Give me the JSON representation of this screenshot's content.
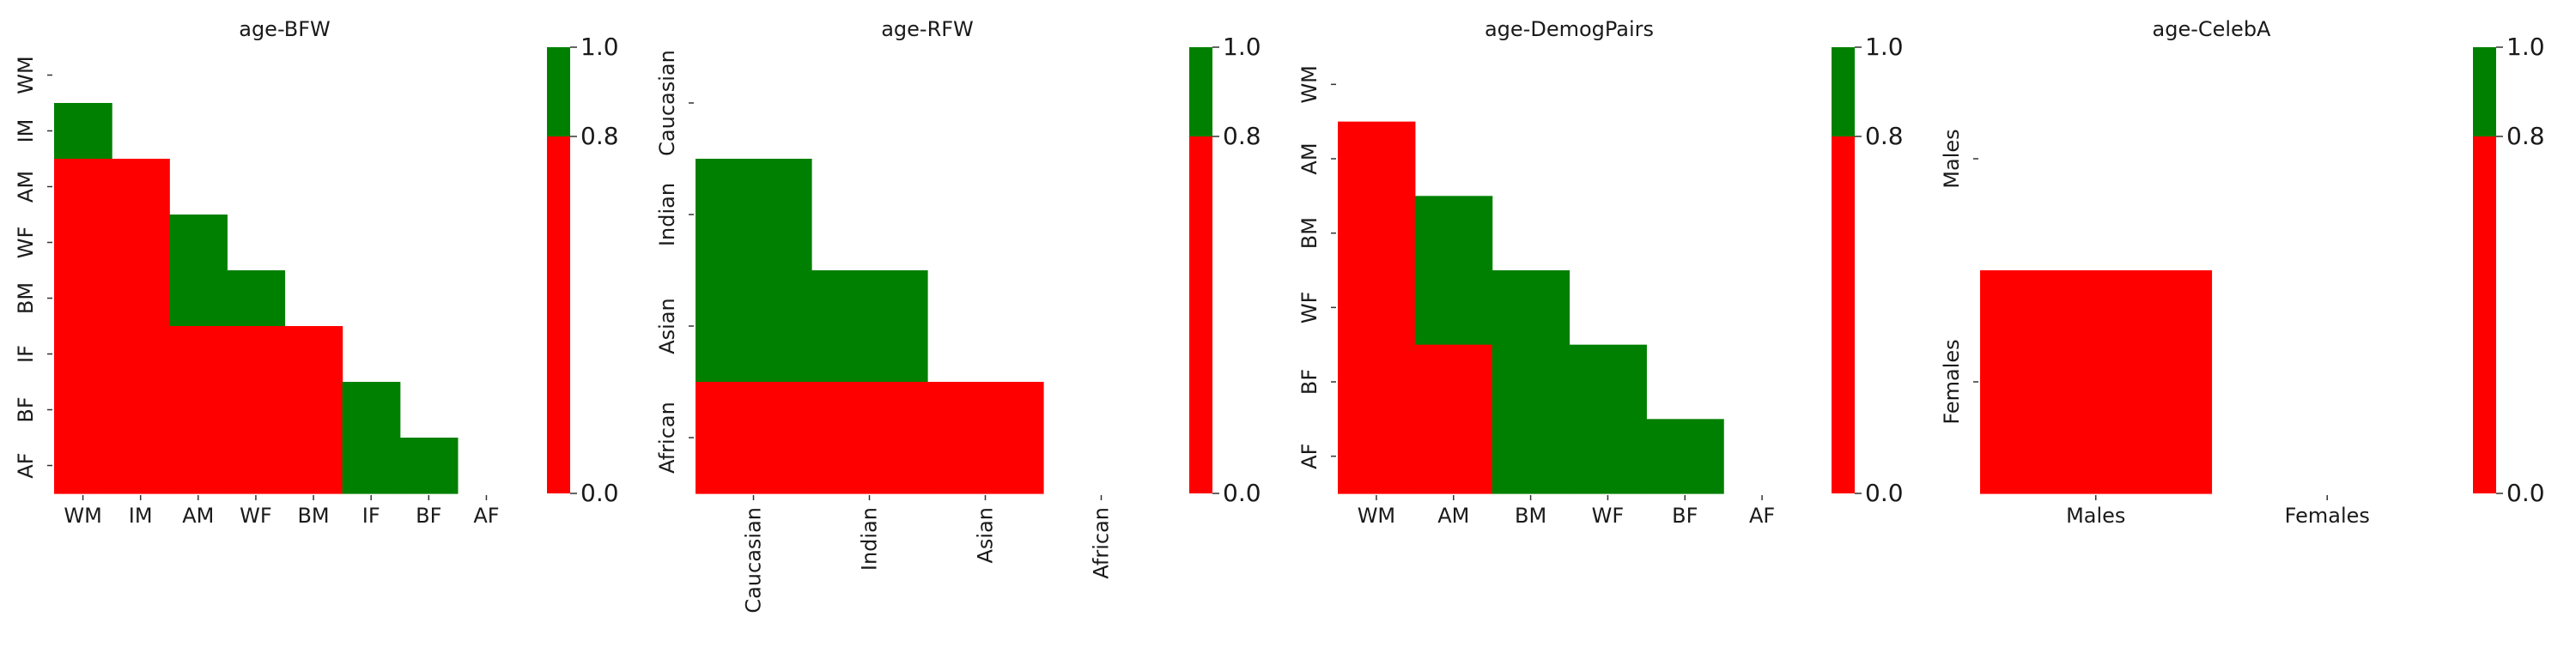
{
  "colors": {
    "high": "#008000",
    "low": "#ff0000"
  },
  "chart_data": [
    {
      "type": "heatmap",
      "title": "age-BFW",
      "categories": [
        "WM",
        "IM",
        "AM",
        "WF",
        "BM",
        "IF",
        "BF",
        "AF"
      ],
      "x_tick_rotation": 0,
      "values": [
        [
          null,
          null,
          null,
          null,
          null,
          null,
          null,
          null
        ],
        [
          1,
          null,
          null,
          null,
          null,
          null,
          null,
          null
        ],
        [
          0,
          0,
          null,
          null,
          null,
          null,
          null,
          null
        ],
        [
          0,
          0,
          1,
          null,
          null,
          null,
          null,
          null
        ],
        [
          0,
          0,
          1,
          1,
          null,
          null,
          null,
          null
        ],
        [
          0,
          0,
          0,
          0,
          0,
          null,
          null,
          null
        ],
        [
          0,
          0,
          0,
          0,
          0,
          1,
          null,
          null
        ],
        [
          0,
          0,
          0,
          0,
          0,
          1,
          1,
          null
        ]
      ],
      "colorbar": {
        "ticks": [
          "1.0",
          "0.8",
          "0.0"
        ],
        "threshold": 0.8,
        "range": [
          0,
          1
        ]
      }
    },
    {
      "type": "heatmap",
      "title": "age-RFW",
      "categories": [
        "Caucasian",
        "Indian",
        "Asian",
        "African"
      ],
      "x_tick_rotation": -90,
      "values": [
        [
          null,
          null,
          null,
          null
        ],
        [
          1,
          null,
          null,
          null
        ],
        [
          1,
          1,
          null,
          null
        ],
        [
          0,
          0,
          0,
          null
        ]
      ],
      "colorbar": {
        "ticks": [
          "1.0",
          "0.8",
          "0.0"
        ],
        "threshold": 0.8,
        "range": [
          0,
          1
        ]
      }
    },
    {
      "type": "heatmap",
      "title": "age-DemogPairs",
      "categories": [
        "WM",
        "AM",
        "BM",
        "WF",
        "BF",
        "AF"
      ],
      "x_tick_rotation": 0,
      "values": [
        [
          null,
          null,
          null,
          null,
          null,
          null
        ],
        [
          0,
          null,
          null,
          null,
          null,
          null
        ],
        [
          0,
          1,
          null,
          null,
          null,
          null
        ],
        [
          0,
          1,
          1,
          null,
          null,
          null
        ],
        [
          0,
          0,
          1,
          1,
          null,
          null
        ],
        [
          0,
          0,
          1,
          1,
          1,
          null
        ]
      ],
      "colorbar": {
        "ticks": [
          "1.0",
          "0.8",
          "0.0"
        ],
        "threshold": 0.8,
        "range": [
          0,
          1
        ]
      }
    },
    {
      "type": "heatmap",
      "title": "age-CelebA",
      "categories": [
        "Males",
        "Females"
      ],
      "x_tick_rotation": 0,
      "values": [
        [
          null,
          null
        ],
        [
          0,
          null
        ]
      ],
      "colorbar": {
        "ticks": [
          "1.0",
          "0.8",
          "0.0"
        ],
        "threshold": 0.8,
        "range": [
          0,
          1
        ]
      }
    }
  ]
}
